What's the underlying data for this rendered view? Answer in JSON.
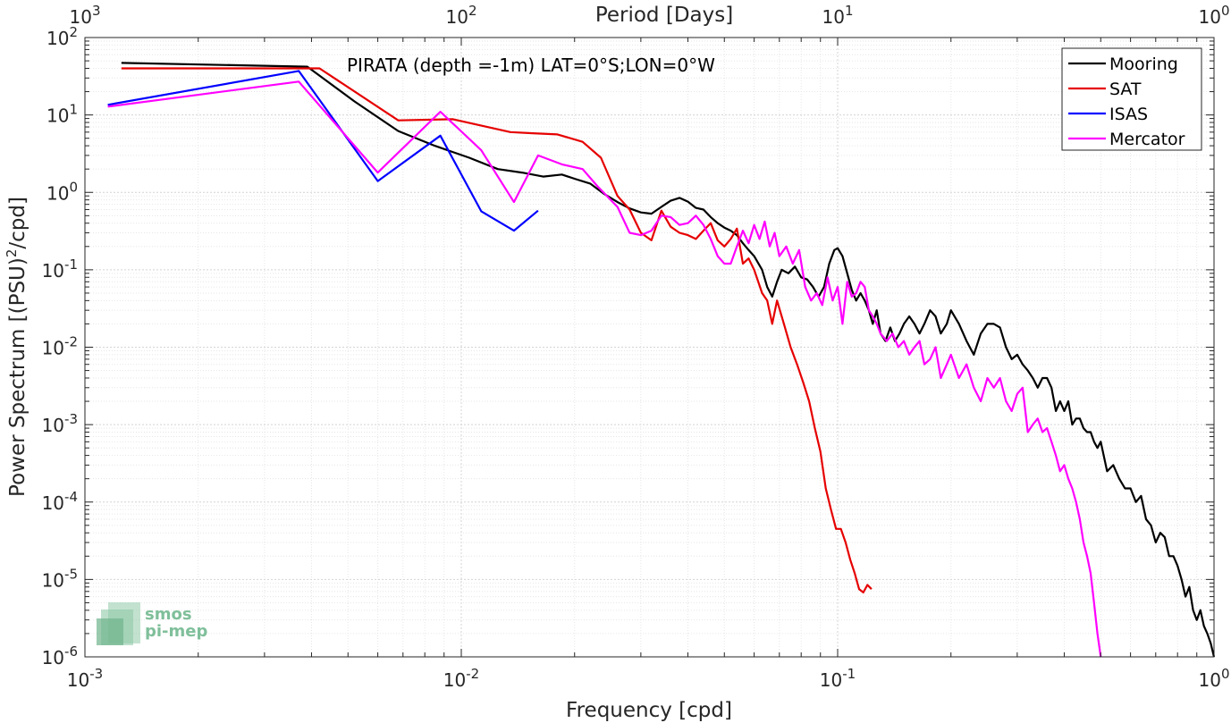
{
  "chart_data": {
    "type": "line",
    "title": "PIRATA (depth =-1m) LAT=0°S;LON=0°W",
    "xlabel": "Frequency [cpd]",
    "ylabel": "Power Spectrum [(PSU)",
    "ylabel_sup": "2",
    "ylabel_end": "/cpd]",
    "x2label": "Period [Days]",
    "xscale": "log",
    "yscale": "log",
    "xlim": [
      0.001,
      1
    ],
    "ylim": [
      1e-06,
      100
    ],
    "grid": true,
    "legend_position": "top-right",
    "x_ticks": [
      {
        "base": "10",
        "exp": "-3",
        "value": 0.001
      },
      {
        "base": "10",
        "exp": "-2",
        "value": 0.01
      },
      {
        "base": "10",
        "exp": "-1",
        "value": 0.1
      },
      {
        "base": "10",
        "exp": "0",
        "value": 1
      }
    ],
    "x2_ticks": [
      {
        "base": "10",
        "exp": "3",
        "value": 0.001
      },
      {
        "base": "10",
        "exp": "2",
        "value": 0.01
      },
      {
        "base": "10",
        "exp": "1",
        "value": 0.1
      },
      {
        "base": "10",
        "exp": "0",
        "value": 1
      }
    ],
    "y_ticks": [
      {
        "base": "10",
        "exp": "2",
        "value": 100
      },
      {
        "base": "10",
        "exp": "1",
        "value": 10
      },
      {
        "base": "10",
        "exp": "0",
        "value": 1
      },
      {
        "base": "10",
        "exp": "-1",
        "value": 0.1
      },
      {
        "base": "10",
        "exp": "-2",
        "value": 0.01
      },
      {
        "base": "10",
        "exp": "-3",
        "value": 0.001
      },
      {
        "base": "10",
        "exp": "-4",
        "value": 0.0001
      },
      {
        "base": "10",
        "exp": "-5",
        "value": 1e-05
      },
      {
        "base": "10",
        "exp": "-6",
        "value": 1e-06
      }
    ],
    "series": [
      {
        "name": "Mooring",
        "color": "#000000",
        "points": [
          [
            0.00125,
            47
          ],
          [
            0.0039,
            42
          ],
          [
            0.0052,
            15
          ],
          [
            0.0068,
            6.2
          ],
          [
            0.0085,
            4.0
          ],
          [
            0.0105,
            2.8
          ],
          [
            0.0125,
            2.0
          ],
          [
            0.0145,
            1.8
          ],
          [
            0.0165,
            1.6
          ],
          [
            0.0185,
            1.7
          ],
          [
            0.02,
            1.5
          ],
          [
            0.022,
            1.3
          ],
          [
            0.024,
            0.95
          ],
          [
            0.026,
            0.75
          ],
          [
            0.028,
            0.62
          ],
          [
            0.03,
            0.55
          ],
          [
            0.032,
            0.53
          ],
          [
            0.034,
            0.65
          ],
          [
            0.036,
            0.78
          ],
          [
            0.038,
            0.85
          ],
          [
            0.04,
            0.76
          ],
          [
            0.042,
            0.63
          ],
          [
            0.044,
            0.6
          ],
          [
            0.046,
            0.48
          ],
          [
            0.048,
            0.4
          ],
          [
            0.05,
            0.35
          ],
          [
            0.052,
            0.32
          ],
          [
            0.054,
            0.28
          ],
          [
            0.056,
            0.22
          ],
          [
            0.058,
            0.18
          ],
          [
            0.06,
            0.15
          ],
          [
            0.063,
            0.1
          ],
          [
            0.065,
            0.06
          ],
          [
            0.067,
            0.045
          ],
          [
            0.069,
            0.07
          ],
          [
            0.071,
            0.1
          ],
          [
            0.074,
            0.09
          ],
          [
            0.077,
            0.11
          ],
          [
            0.08,
            0.08
          ],
          [
            0.083,
            0.075
          ],
          [
            0.086,
            0.06
          ],
          [
            0.089,
            0.045
          ],
          [
            0.092,
            0.06
          ],
          [
            0.095,
            0.12
          ],
          [
            0.098,
            0.18
          ],
          [
            0.1,
            0.19
          ],
          [
            0.103,
            0.15
          ],
          [
            0.106,
            0.09
          ],
          [
            0.109,
            0.055
          ],
          [
            0.112,
            0.04
          ],
          [
            0.115,
            0.05
          ],
          [
            0.118,
            0.04
          ],
          [
            0.121,
            0.03
          ],
          [
            0.124,
            0.02
          ],
          [
            0.127,
            0.03
          ],
          [
            0.13,
            0.015
          ],
          [
            0.134,
            0.012
          ],
          [
            0.138,
            0.018
          ],
          [
            0.142,
            0.012
          ],
          [
            0.146,
            0.015
          ],
          [
            0.15,
            0.02
          ],
          [
            0.155,
            0.025
          ],
          [
            0.16,
            0.02
          ],
          [
            0.165,
            0.015
          ],
          [
            0.17,
            0.02
          ],
          [
            0.176,
            0.03
          ],
          [
            0.182,
            0.025
          ],
          [
            0.188,
            0.015
          ],
          [
            0.195,
            0.02
          ],
          [
            0.2,
            0.03
          ],
          [
            0.21,
            0.02
          ],
          [
            0.22,
            0.012
          ],
          [
            0.23,
            0.008
          ],
          [
            0.24,
            0.015
          ],
          [
            0.25,
            0.02
          ],
          [
            0.26,
            0.02
          ],
          [
            0.27,
            0.018
          ],
          [
            0.28,
            0.01
          ],
          [
            0.29,
            0.007
          ],
          [
            0.3,
            0.008
          ],
          [
            0.31,
            0.006
          ],
          [
            0.32,
            0.005
          ],
          [
            0.33,
            0.004
          ],
          [
            0.34,
            0.003
          ],
          [
            0.35,
            0.004
          ],
          [
            0.36,
            0.004
          ],
          [
            0.37,
            0.003
          ],
          [
            0.38,
            0.0015
          ],
          [
            0.39,
            0.002
          ],
          [
            0.4,
            0.0015
          ],
          [
            0.41,
            0.002
          ],
          [
            0.42,
            0.001
          ],
          [
            0.43,
            0.0012
          ],
          [
            0.44,
            0.0012
          ],
          [
            0.45,
            0.0009
          ],
          [
            0.46,
            0.0008
          ],
          [
            0.47,
            0.0008
          ],
          [
            0.48,
            0.0006
          ],
          [
            0.49,
            0.0005
          ],
          [
            0.5,
            0.0006
          ],
          [
            0.52,
            0.00025
          ],
          [
            0.54,
            0.0003
          ],
          [
            0.56,
            0.0002
          ],
          [
            0.58,
            0.00015
          ],
          [
            0.6,
            0.00015
          ],
          [
            0.62,
            0.0001
          ],
          [
            0.64,
            0.00012
          ],
          [
            0.66,
            6e-05
          ],
          [
            0.68,
            5e-05
          ],
          [
            0.7,
            3e-05
          ],
          [
            0.72,
            4e-05
          ],
          [
            0.74,
            3.5e-05
          ],
          [
            0.76,
            2e-05
          ],
          [
            0.78,
            2e-05
          ],
          [
            0.8,
            1.5e-05
          ],
          [
            0.82,
            1e-05
          ],
          [
            0.84,
            6e-06
          ],
          [
            0.86,
            8e-06
          ],
          [
            0.88,
            4e-06
          ],
          [
            0.9,
            3e-06
          ],
          [
            0.92,
            4e-06
          ],
          [
            0.94,
            2.5e-06
          ],
          [
            0.96,
            2e-06
          ],
          [
            0.98,
            1.5e-06
          ],
          [
            1.0,
            1e-06
          ]
        ]
      },
      {
        "name": "SAT",
        "color": "#e60000",
        "points": [
          [
            0.00125,
            40
          ],
          [
            0.0042,
            40
          ],
          [
            0.0068,
            8.5
          ],
          [
            0.0095,
            8.8
          ],
          [
            0.0135,
            6.0
          ],
          [
            0.0155,
            5.8
          ],
          [
            0.018,
            5.6
          ],
          [
            0.021,
            4.5
          ],
          [
            0.0235,
            2.8
          ],
          [
            0.026,
            0.9
          ],
          [
            0.028,
            0.6
          ],
          [
            0.03,
            0.3
          ],
          [
            0.032,
            0.24
          ],
          [
            0.034,
            0.58
          ],
          [
            0.036,
            0.36
          ],
          [
            0.038,
            0.3
          ],
          [
            0.04,
            0.28
          ],
          [
            0.042,
            0.25
          ],
          [
            0.044,
            0.32
          ],
          [
            0.046,
            0.4
          ],
          [
            0.048,
            0.24
          ],
          [
            0.05,
            0.2
          ],
          [
            0.052,
            0.25
          ],
          [
            0.054,
            0.34
          ],
          [
            0.056,
            0.12
          ],
          [
            0.058,
            0.14
          ],
          [
            0.06,
            0.1
          ],
          [
            0.063,
            0.05
          ],
          [
            0.065,
            0.04
          ],
          [
            0.067,
            0.02
          ],
          [
            0.069,
            0.04
          ],
          [
            0.072,
            0.02
          ],
          [
            0.075,
            0.01
          ],
          [
            0.078,
            0.006
          ],
          [
            0.081,
            0.0035
          ],
          [
            0.084,
            0.002
          ],
          [
            0.087,
            0.0009
          ],
          [
            0.09,
            0.00045
          ],
          [
            0.093,
            0.00015
          ],
          [
            0.096,
            8e-05
          ],
          [
            0.099,
            4.5e-05
          ],
          [
            0.102,
            4.5e-05
          ],
          [
            0.105,
            3e-05
          ],
          [
            0.108,
            1.8e-05
          ],
          [
            0.111,
            1.2e-05
          ],
          [
            0.114,
            7.5e-06
          ],
          [
            0.117,
            6.8e-06
          ],
          [
            0.12,
            8.5e-06
          ],
          [
            0.123,
            7.5e-06
          ]
        ]
      },
      {
        "name": "ISAS",
        "color": "#0000ff",
        "points": [
          [
            0.00115,
            13.5
          ],
          [
            0.0037,
            37
          ],
          [
            0.006,
            1.4
          ],
          [
            0.0088,
            5.4
          ],
          [
            0.0113,
            0.57
          ],
          [
            0.0138,
            0.32
          ],
          [
            0.016,
            0.58
          ]
        ]
      },
      {
        "name": "Mercator",
        "color": "#ff00ff",
        "points": [
          [
            0.00115,
            12.8
          ],
          [
            0.0037,
            27
          ],
          [
            0.006,
            1.8
          ],
          [
            0.0088,
            11
          ],
          [
            0.0113,
            3.5
          ],
          [
            0.0138,
            0.75
          ],
          [
            0.016,
            3.0
          ],
          [
            0.0185,
            2.3
          ],
          [
            0.021,
            2.0
          ],
          [
            0.023,
            1.2
          ],
          [
            0.026,
            0.65
          ],
          [
            0.028,
            0.3
          ],
          [
            0.03,
            0.28
          ],
          [
            0.032,
            0.32
          ],
          [
            0.034,
            0.5
          ],
          [
            0.036,
            0.48
          ],
          [
            0.038,
            0.38
          ],
          [
            0.04,
            0.4
          ],
          [
            0.042,
            0.5
          ],
          [
            0.044,
            0.38
          ],
          [
            0.046,
            0.25
          ],
          [
            0.048,
            0.15
          ],
          [
            0.05,
            0.12
          ],
          [
            0.052,
            0.12
          ],
          [
            0.054,
            0.2
          ],
          [
            0.056,
            0.32
          ],
          [
            0.058,
            0.22
          ],
          [
            0.06,
            0.38
          ],
          [
            0.062,
            0.25
          ],
          [
            0.064,
            0.42
          ],
          [
            0.066,
            0.2
          ],
          [
            0.068,
            0.3
          ],
          [
            0.07,
            0.15
          ],
          [
            0.073,
            0.2
          ],
          [
            0.076,
            0.12
          ],
          [
            0.079,
            0.18
          ],
          [
            0.082,
            0.06
          ],
          [
            0.085,
            0.04
          ],
          [
            0.088,
            0.05
          ],
          [
            0.091,
            0.035
          ],
          [
            0.094,
            0.08
          ],
          [
            0.097,
            0.04
          ],
          [
            0.1,
            0.06
          ],
          [
            0.103,
            0.02
          ],
          [
            0.106,
            0.07
          ],
          [
            0.109,
            0.045
          ],
          [
            0.112,
            0.05
          ],
          [
            0.115,
            0.07
          ],
          [
            0.118,
            0.06
          ],
          [
            0.121,
            0.03
          ],
          [
            0.124,
            0.025
          ],
          [
            0.127,
            0.02
          ],
          [
            0.13,
            0.015
          ],
          [
            0.135,
            0.012
          ],
          [
            0.14,
            0.015
          ],
          [
            0.145,
            0.01
          ],
          [
            0.15,
            0.012
          ],
          [
            0.155,
            0.008
          ],
          [
            0.16,
            0.01
          ],
          [
            0.165,
            0.012
          ],
          [
            0.17,
            0.006
          ],
          [
            0.176,
            0.007
          ],
          [
            0.182,
            0.01
          ],
          [
            0.188,
            0.004
          ],
          [
            0.195,
            0.006
          ],
          [
            0.2,
            0.008
          ],
          [
            0.21,
            0.004
          ],
          [
            0.22,
            0.006
          ],
          [
            0.23,
            0.003
          ],
          [
            0.24,
            0.002
          ],
          [
            0.25,
            0.004
          ],
          [
            0.26,
            0.003
          ],
          [
            0.27,
            0.004
          ],
          [
            0.28,
            0.002
          ],
          [
            0.29,
            0.0015
          ],
          [
            0.3,
            0.0025
          ],
          [
            0.31,
            0.003
          ],
          [
            0.32,
            0.0008
          ],
          [
            0.33,
            0.001
          ],
          [
            0.34,
            0.0012
          ],
          [
            0.35,
            0.0008
          ],
          [
            0.36,
            0.0009
          ],
          [
            0.37,
            0.0006
          ],
          [
            0.38,
            0.0004
          ],
          [
            0.39,
            0.00025
          ],
          [
            0.4,
            0.0003
          ],
          [
            0.41,
            0.0002
          ],
          [
            0.42,
            0.00015
          ],
          [
            0.43,
            0.0001
          ],
          [
            0.44,
            6e-05
          ],
          [
            0.45,
            3e-05
          ],
          [
            0.46,
            2e-05
          ],
          [
            0.47,
            1.2e-05
          ],
          [
            0.48,
            5e-06
          ],
          [
            0.49,
            2e-06
          ],
          [
            0.5,
            1e-06
          ]
        ]
      }
    ]
  },
  "logo": {
    "line1": "smos",
    "line2": "pi-mep"
  }
}
